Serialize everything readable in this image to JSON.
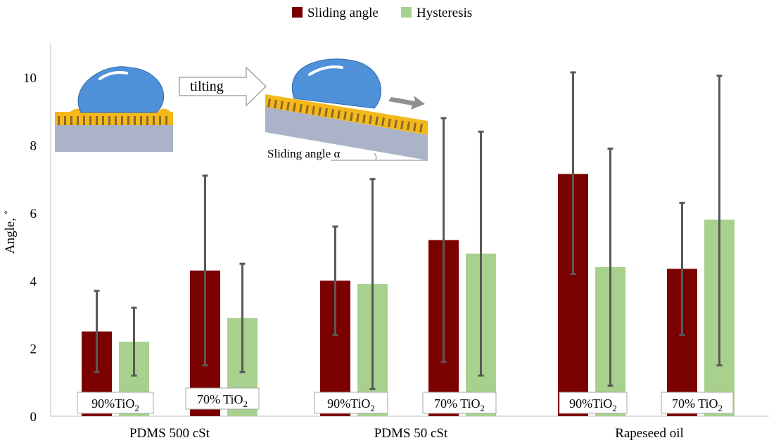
{
  "chart_data": {
    "type": "bar",
    "title": "",
    "xlabel": "",
    "ylabel": "Angle, ˚",
    "ylim": [
      0,
      11
    ],
    "yticks": [
      0,
      2,
      4,
      6,
      8,
      10
    ],
    "grid": false,
    "legend_position": "top-center",
    "groups": [
      "PDMS 500 cSt",
      "PDMS 50 cSt",
      "Rapeseed oil"
    ],
    "categories": [
      "PDMS 500 cSt 90%TiO2",
      "PDMS 500 cSt 70% TiO2",
      "PDMS 50 cSt 90%TiO2",
      "PDMS 50 cSt 70% TiO2",
      "Rapeseed oil 90%TiO2",
      "Rapeseed oil 70% TiO2"
    ],
    "subgroup_labels": [
      {
        "text": "90%TiO",
        "sub": "2"
      },
      {
        "text": "70% TiO",
        "sub": "2"
      },
      {
        "text": "90%TiO",
        "sub": "2"
      },
      {
        "text": "70% TiO",
        "sub": "2"
      },
      {
        "text": "90%TiO",
        "sub": "2"
      },
      {
        "text": "70% TiO",
        "sub": "2"
      }
    ],
    "series": [
      {
        "name": "Sliding angle",
        "color": "#7b0000",
        "values": [
          2.5,
          4.3,
          4.0,
          5.2,
          7.15,
          4.35
        ],
        "error_low": [
          1.3,
          1.5,
          2.4,
          1.6,
          4.2,
          2.4
        ],
        "error_high": [
          3.7,
          7.1,
          5.6,
          8.8,
          10.15,
          6.3
        ]
      },
      {
        "name": "Hysteresis",
        "color": "#a9d18e",
        "values": [
          2.2,
          2.9,
          3.9,
          4.8,
          4.4,
          5.8
        ],
        "error_low": [
          1.2,
          1.3,
          0.8,
          1.2,
          0.9,
          1.5
        ],
        "error_high": [
          3.2,
          4.5,
          7.0,
          8.4,
          7.9,
          10.05
        ]
      }
    ],
    "inset": {
      "arrow_text": "tilting",
      "angle_text": "Sliding angle α"
    }
  }
}
